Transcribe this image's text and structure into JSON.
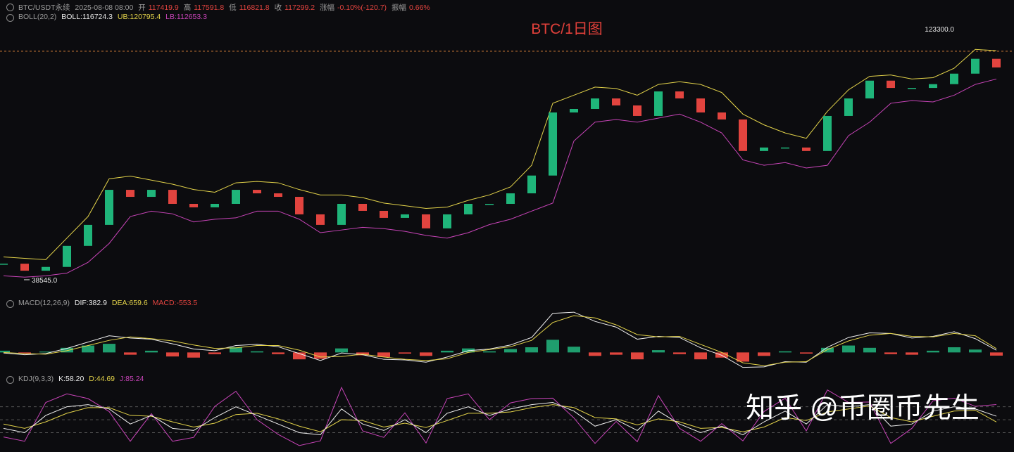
{
  "header": {
    "symbol": "BTC/USDT永续",
    "time": "2025-08-08 08:00",
    "open_label": "开",
    "open": "117419.9",
    "high_label": "高",
    "high": "117591.8",
    "low_label": "低",
    "low": "116821.8",
    "close_label": "收",
    "close": "117299.2",
    "change_label": "涨幅",
    "change": "-0.10%(-120.7)",
    "amplitude_label": "振幅",
    "amplitude": "0.66%"
  },
  "watermark": "知乎 @币圈币先生",
  "chart_data": [
    {
      "type": "candlestick",
      "title": "BTC/1日图",
      "labels": {
        "indicator": "BOLL(20,2)",
        "mid": "BOLL:116724.3",
        "upper": "UB:120795.4",
        "lower": "LB:112653.3"
      },
      "values": [
        44500,
        41900,
        43300,
        51100,
        58900,
        71900,
        69300,
        71900,
        66700,
        65400,
        66700,
        71900,
        70600,
        69300,
        62800,
        58900,
        66700,
        64100,
        61500,
        62800,
        57600,
        62800,
        66700,
        66700,
        70600,
        77200,
        100600,
        101900,
        105800,
        103200,
        99300,
        108400,
        105800,
        100600,
        98000,
        86300,
        87600,
        87600,
        86300,
        99300,
        105800,
        112400,
        109700,
        109700,
        111100,
        115000,
        120500,
        117300
      ],
      "upper": [
        47000,
        46500,
        46000,
        54000,
        62000,
        76000,
        77000,
        75500,
        74000,
        72000,
        71000,
        74500,
        75000,
        74500,
        72000,
        70000,
        70000,
        69000,
        67000,
        66000,
        65000,
        65500,
        68000,
        70000,
        73000,
        81000,
        104000,
        107000,
        110000,
        109500,
        107000,
        111000,
        112000,
        111000,
        108000,
        100000,
        96000,
        93000,
        91000,
        101000,
        109000,
        114000,
        114500,
        113000,
        113500,
        117000,
        124000,
        123500
      ],
      "lower": [
        40000,
        39500,
        40000,
        41000,
        45000,
        52000,
        62000,
        64000,
        63000,
        60000,
        61000,
        61500,
        64000,
        64000,
        61000,
        56000,
        57000,
        58000,
        57500,
        56500,
        55000,
        54000,
        56000,
        59000,
        61000,
        64000,
        67000,
        90000,
        97000,
        98000,
        97000,
        98500,
        100000,
        97000,
        93000,
        83000,
        81000,
        82000,
        80000,
        81000,
        92000,
        97000,
        104000,
        105000,
        104500,
        107000,
        111000,
        113000
      ],
      "colors": {
        "up": "#1fb57a",
        "down": "#e2443f",
        "upper": "#e3d34a",
        "lower": "#c844b8",
        "title": "#e0403a",
        "marker": "#d9803a"
      },
      "ylim": [
        32800,
        137100
      ],
      "annotations": [
        {
          "value": 123300,
          "label": "123300.0"
        },
        {
          "value": 38545,
          "label": "38545.0"
        }
      ]
    },
    {
      "type": "macd",
      "labels": {
        "indicator": "MACD(12,26,9)",
        "dif": "DIF:382.9",
        "dea": "DEA:659.6",
        "macd": "MACD:-553.5"
      },
      "values": [
        300,
        -200,
        150,
        800,
        1200,
        1500,
        -400,
        300,
        -700,
        -900,
        -300,
        900,
        200,
        -300,
        -1200,
        -1100,
        700,
        -500,
        -800,
        -200,
        -600,
        300,
        700,
        200,
        600,
        900,
        2200,
        1000,
        -600,
        -400,
        -1200,
        400,
        -300,
        -1200,
        -900,
        -1600,
        -600,
        200,
        -200,
        800,
        1200,
        800,
        -300,
        -400,
        300,
        900,
        500,
        -553.5
      ],
      "dif": [
        -100,
        -400,
        -200,
        700,
        1800,
        2900,
        2500,
        2300,
        1500,
        600,
        300,
        1200,
        1400,
        1000,
        -200,
        -1400,
        -100,
        -400,
        -1200,
        -1300,
        -1700,
        -800,
        300,
        600,
        1300,
        2600,
        6800,
        7000,
        5400,
        4400,
        2300,
        2800,
        2600,
        800,
        -500,
        -2600,
        -2500,
        -1600,
        -1700,
        900,
        2600,
        3400,
        3300,
        2500,
        2800,
        3600,
        2400,
        382.9
      ],
      "dea": [
        0,
        -200,
        -300,
        300,
        1200,
        2100,
        2700,
        2400,
        2000,
        1300,
        700,
        800,
        1200,
        1200,
        400,
        -800,
        -700,
        -300,
        -800,
        -1200,
        -1400,
        -1100,
        0,
        500,
        1000,
        2100,
        5200,
        6400,
        6000,
        4800,
        3100,
        2700,
        2800,
        1400,
        0,
        -1800,
        -2300,
        -1700,
        -1600,
        500,
        2000,
        3000,
        3300,
        2800,
        2700,
        3300,
        2900,
        659.6
      ],
      "colors": {
        "up": "#1f9e6e",
        "down": "#e0463e",
        "dif": "#f0f0f0",
        "dea": "#e3d34a"
      },
      "ylim": [
        -3500,
        7500
      ]
    },
    {
      "type": "kdj",
      "labels": {
        "indicator": "KDJ(9,3,3)",
        "k": "K:58.20",
        "d": "D:44.69",
        "j": "J:85.24"
      },
      "k": [
        30,
        20,
        60,
        80,
        85,
        75,
        40,
        60,
        30,
        25,
        55,
        80,
        60,
        40,
        20,
        15,
        75,
        40,
        25,
        50,
        20,
        65,
        80,
        60,
        75,
        85,
        90,
        70,
        35,
        50,
        25,
        70,
        40,
        20,
        35,
        15,
        45,
        70,
        40,
        85,
        80,
        85,
        35,
        40,
        70,
        80,
        75,
        58.2
      ],
      "d": [
        40,
        30,
        45,
        65,
        78,
        78,
        60,
        58,
        45,
        33,
        42,
        62,
        65,
        52,
        35,
        22,
        50,
        48,
        33,
        42,
        32,
        48,
        65,
        65,
        68,
        78,
        85,
        78,
        55,
        52,
        38,
        52,
        45,
        30,
        32,
        22,
        33,
        55,
        48,
        68,
        75,
        82,
        55,
        45,
        58,
        70,
        72,
        44.69
      ],
      "j": [
        10,
        0,
        90,
        110,
        99,
        69,
        0,
        64,
        0,
        9,
        81,
        116,
        50,
        16,
        -10,
        1,
        125,
        24,
        9,
        66,
        -4,
        99,
        110,
        50,
        89,
        99,
        100,
        54,
        -5,
        46,
        -1,
        106,
        30,
        0,
        41,
        1,
        69,
        100,
        24,
        119,
        90,
        91,
        -5,
        30,
        94,
        100,
        81,
        85.24
      ],
      "colors": {
        "k": "#f0f0f0",
        "d": "#e3d34a",
        "j": "#c844b8"
      },
      "levels": [
        80,
        50,
        20
      ],
      "ylim": [
        -20,
        130
      ]
    }
  ]
}
